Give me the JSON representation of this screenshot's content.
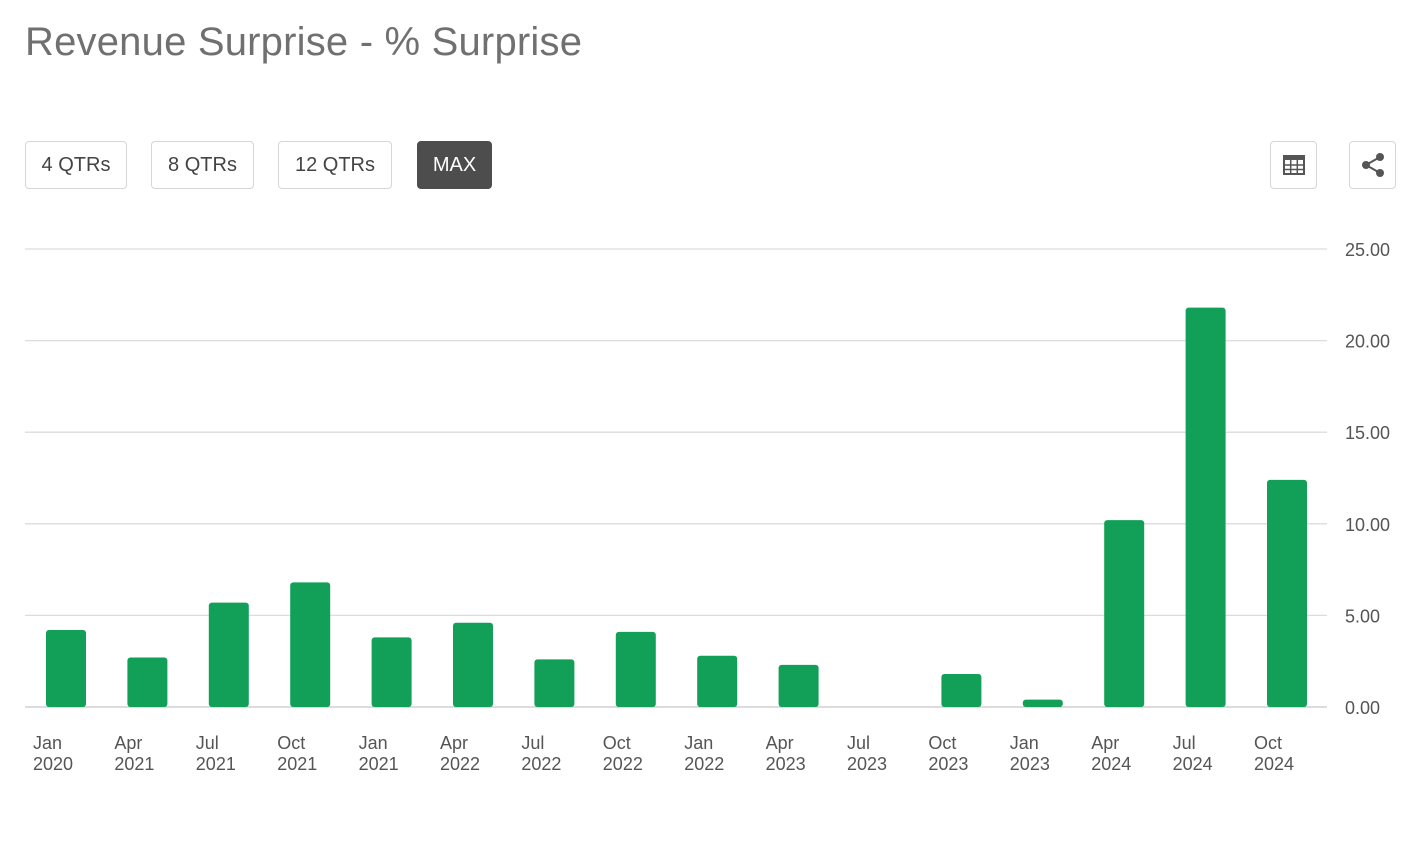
{
  "title": "Revenue Surprise - % Surprise",
  "range_buttons": [
    {
      "label": "4 QTRs",
      "active": false
    },
    {
      "label": "8 QTRs",
      "active": false
    },
    {
      "label": "12 QTRs",
      "active": false
    },
    {
      "label": "MAX",
      "active": true
    }
  ],
  "tools": {
    "table_icon": "table-icon",
    "share_icon": "share-icon"
  },
  "colors": {
    "bar": "#12a058",
    "grid": "#dcdcdc",
    "axis_text": "#555555"
  },
  "chart_data": {
    "type": "bar",
    "title": "Revenue Surprise - % Surprise",
    "xlabel": "",
    "ylabel": "",
    "ylim": [
      0,
      25
    ],
    "yticks": [
      "0.00",
      "5.00",
      "10.00",
      "15.00",
      "20.00",
      "25.00"
    ],
    "y_axis_position": "right",
    "grid": true,
    "categories": [
      [
        "Jan",
        "2020"
      ],
      [
        "Apr",
        "2021"
      ],
      [
        "Jul",
        "2021"
      ],
      [
        "Oct",
        "2021"
      ],
      [
        "Jan",
        "2021"
      ],
      [
        "Apr",
        "2022"
      ],
      [
        "Jul",
        "2022"
      ],
      [
        "Oct",
        "2022"
      ],
      [
        "Jan",
        "2022"
      ],
      [
        "Apr",
        "2023"
      ],
      [
        "Jul",
        "2023"
      ],
      [
        "Oct",
        "2023"
      ],
      [
        "Jan",
        "2023"
      ],
      [
        "Apr",
        "2024"
      ],
      [
        "Jul",
        "2024"
      ],
      [
        "Oct",
        "2024"
      ]
    ],
    "values": [
      4.2,
      2.7,
      5.7,
      6.8,
      3.8,
      4.6,
      2.6,
      4.1,
      2.8,
      2.3,
      0,
      1.8,
      0.4,
      10.2,
      21.8,
      12.4
    ]
  }
}
